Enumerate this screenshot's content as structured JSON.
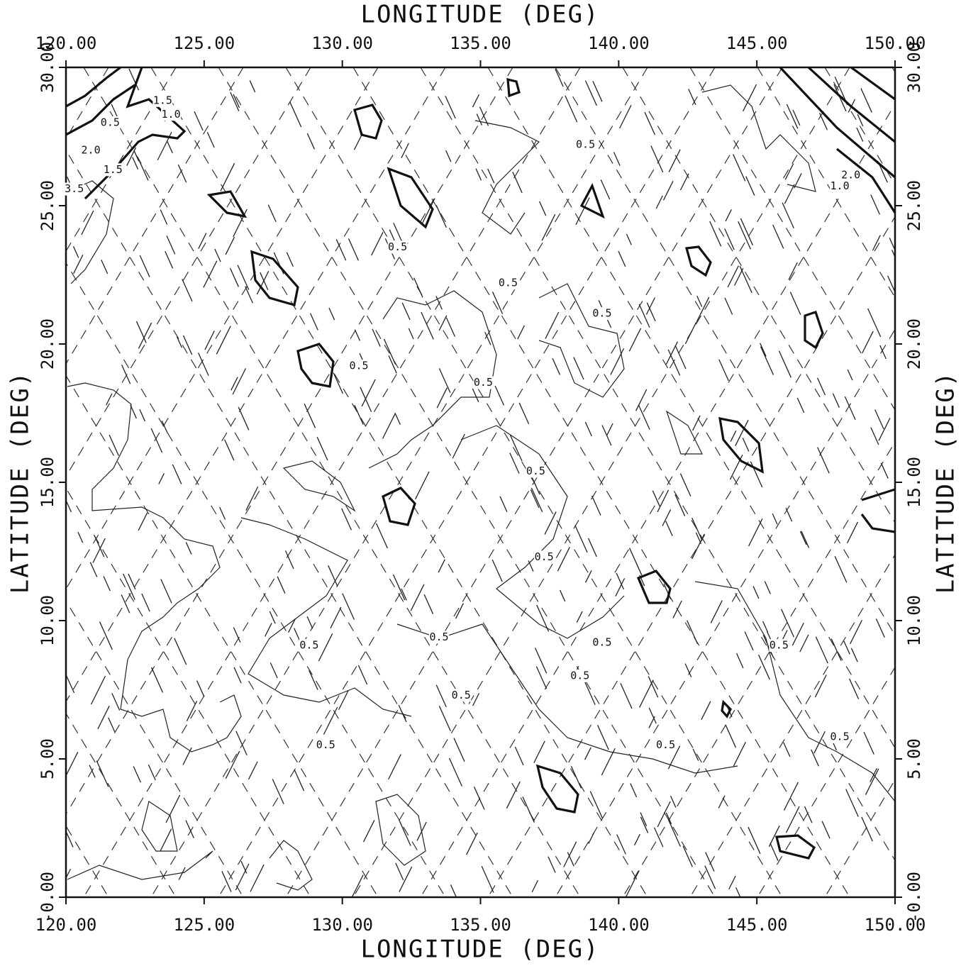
{
  "chart_data": {
    "type": "contour",
    "x_label": "LONGITUDE  (DEG)",
    "y_label": "LATITUDE  (DEG)",
    "xlim": [
      120,
      150
    ],
    "ylim": [
      0,
      30
    ],
    "xticks": [
      {
        "value": 120,
        "label": "120.00"
      },
      {
        "value": 125,
        "label": "125.00"
      },
      {
        "value": 130,
        "label": "130.00"
      },
      {
        "value": 135,
        "label": "135.00"
      },
      {
        "value": 140,
        "label": "140.00"
      },
      {
        "value": 145,
        "label": "145.00"
      },
      {
        "value": 150,
        "label": "150.00"
      }
    ],
    "yticks": [
      {
        "value": 0,
        "label": "-0.00"
      },
      {
        "value": 5,
        "label": "5.00"
      },
      {
        "value": 10,
        "label": "10.00"
      },
      {
        "value": 15,
        "label": "15.00"
      },
      {
        "value": 20,
        "label": "20.00"
      },
      {
        "value": 25,
        "label": "25.00"
      },
      {
        "value": 30,
        "label": "30.00"
      }
    ],
    "annotations": [
      {
        "text": "0.5",
        "x": 132.0,
        "y": 23.5
      },
      {
        "text": "0.5",
        "x": 136.0,
        "y": 22.2
      },
      {
        "text": "0.5",
        "x": 139.4,
        "y": 21.1
      },
      {
        "text": "0.5",
        "x": 130.6,
        "y": 19.2
      },
      {
        "text": "0.5",
        "x": 135.1,
        "y": 18.6
      },
      {
        "text": "0.5",
        "x": 137.0,
        "y": 15.4
      },
      {
        "text": "0.5",
        "x": 137.3,
        "y": 12.3
      },
      {
        "text": "0.5",
        "x": 128.8,
        "y": 9.1
      },
      {
        "text": "0.5",
        "x": 133.5,
        "y": 9.4
      },
      {
        "text": "0.5",
        "x": 139.4,
        "y": 9.2
      },
      {
        "text": "0.5",
        "x": 138.6,
        "y": 8.0
      },
      {
        "text": "0.5",
        "x": 134.3,
        "y": 7.3
      },
      {
        "text": "0.5",
        "x": 129.4,
        "y": 5.5
      },
      {
        "text": "0.5",
        "x": 141.7,
        "y": 5.5
      },
      {
        "text": "0.5",
        "x": 145.8,
        "y": 9.1
      },
      {
        "text": "0.5",
        "x": 148.0,
        "y": 5.8
      },
      {
        "text": "0.5",
        "x": 138.8,
        "y": 27.2
      },
      {
        "text": "1.5",
        "x": 123.5,
        "y": 28.8
      },
      {
        "text": "1.0",
        "x": 123.8,
        "y": 28.3
      },
      {
        "text": "0.5",
        "x": 121.6,
        "y": 28.0
      },
      {
        "text": "2.0",
        "x": 120.9,
        "y": 27.0
      },
      {
        "text": "1.5",
        "x": 121.7,
        "y": 26.3
      },
      {
        "text": "3.5",
        "x": 120.3,
        "y": 25.6
      },
      {
        "text": "1.0",
        "x": 148.0,
        "y": 25.7
      },
      {
        "text": "2.0",
        "x": 148.4,
        "y": 26.1
      }
    ]
  }
}
